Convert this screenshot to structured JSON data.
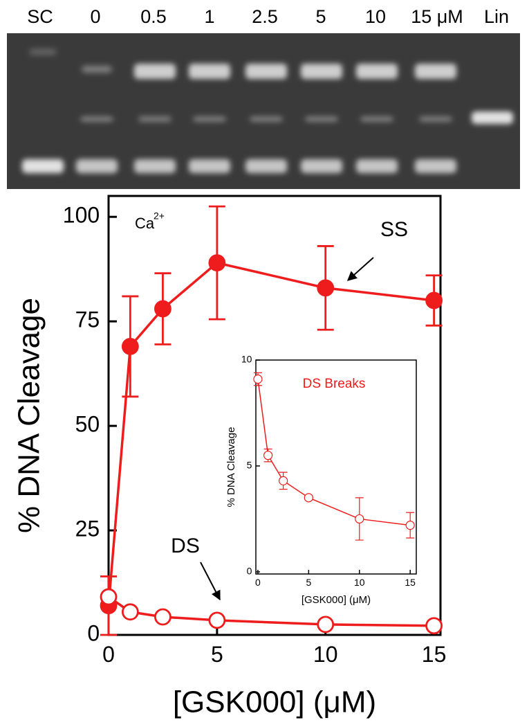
{
  "gel": {
    "lanes": [
      "SC",
      "0",
      "0.5",
      "1",
      "2.5",
      "5",
      "10",
      "15 μM",
      "Lin"
    ]
  },
  "chart_data": [
    {
      "type": "line",
      "xlabel": "[GSK000] (μM)",
      "ylabel": "% DNA Cleavage",
      "ion": {
        "base": "Ca",
        "superscript": "2+"
      },
      "xlim": [
        0,
        15.3
      ],
      "ylim": [
        0,
        105
      ],
      "xticks": [
        0,
        5,
        10,
        15
      ],
      "yticks": [
        0,
        25,
        50,
        75,
        100
      ],
      "series": [
        {
          "name": "SS",
          "color": "#ee1c1c",
          "marker": "filled",
          "x": [
            0,
            1,
            2.5,
            5,
            10,
            15
          ],
          "values": [
            7,
            69,
            78,
            89,
            83,
            80
          ],
          "errors": [
            7,
            12,
            8.5,
            13.5,
            10,
            6
          ]
        },
        {
          "name": "DS",
          "color": "#ee1c1c",
          "marker": "open",
          "x": [
            0,
            1,
            2.5,
            5,
            10,
            15
          ],
          "values": [
            9.1,
            5.5,
            4.3,
            3.5,
            2.5,
            2.2
          ]
        }
      ]
    },
    {
      "type": "line",
      "title": "DS Breaks",
      "xlabel": "[GSK000] (μM)",
      "ylabel": "% DNA Cleavage",
      "xlim": [
        -0.2,
        15.6
      ],
      "ylim": [
        -0.1,
        10
      ],
      "xticks": [
        0,
        5,
        10,
        15
      ],
      "yticks": [
        0,
        5,
        10
      ],
      "series": [
        {
          "color": "#ee1c1c",
          "marker": "open",
          "x": [
            0,
            1,
            2.5,
            5,
            10,
            15
          ],
          "values": [
            9.1,
            5.5,
            4.3,
            3.5,
            2.5,
            2.2
          ],
          "errors": [
            0.3,
            0.3,
            0.4,
            0.1,
            1.0,
            0.6
          ]
        }
      ]
    }
  ]
}
